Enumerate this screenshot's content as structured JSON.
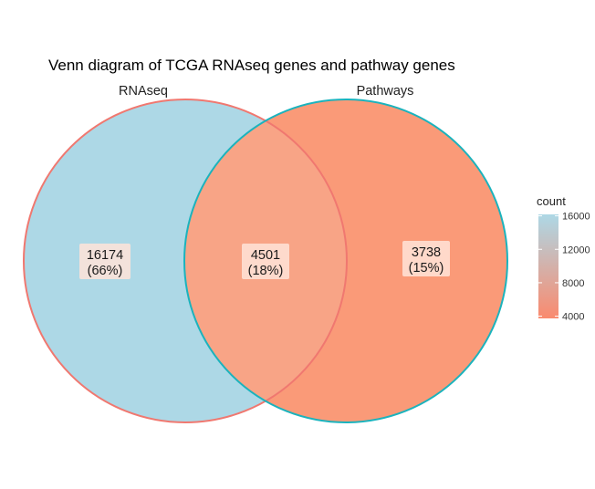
{
  "title": "Venn diagram of TCGA RNAseq genes and pathway genes",
  "colors": {
    "low": "#FA8A6E",
    "high": "#ADD8E6",
    "left_fill": "#ADD8E6",
    "right_fill": "#FA9A78",
    "overlap_fill": "#F8A486",
    "left_edge": "#F07870",
    "right_edge": "#1BB3BD",
    "label_box": "#FFE4D8"
  },
  "chart_data": {
    "type": "venn",
    "sets": [
      {
        "name": "RNAseq"
      },
      {
        "name": "Pathways"
      }
    ],
    "regions": [
      {
        "id": "rnaseq_only",
        "sets": [
          "RNAseq"
        ],
        "count": "16174",
        "percent": "(66%)"
      },
      {
        "id": "both",
        "sets": [
          "RNAseq",
          "Pathways"
        ],
        "count": "4501",
        "percent": "(18%)"
      },
      {
        "id": "pathways_only",
        "sets": [
          "Pathways"
        ],
        "count": "3738",
        "percent": "(15%)"
      }
    ],
    "legend": {
      "title": "count",
      "placement": "right",
      "range": [
        3738,
        16174
      ],
      "ticks": [
        {
          "value": 16000,
          "label": "16000"
        },
        {
          "value": 12000,
          "label": "12000"
        },
        {
          "value": 8000,
          "label": "8000"
        },
        {
          "value": 4000,
          "label": "4000"
        }
      ]
    }
  }
}
